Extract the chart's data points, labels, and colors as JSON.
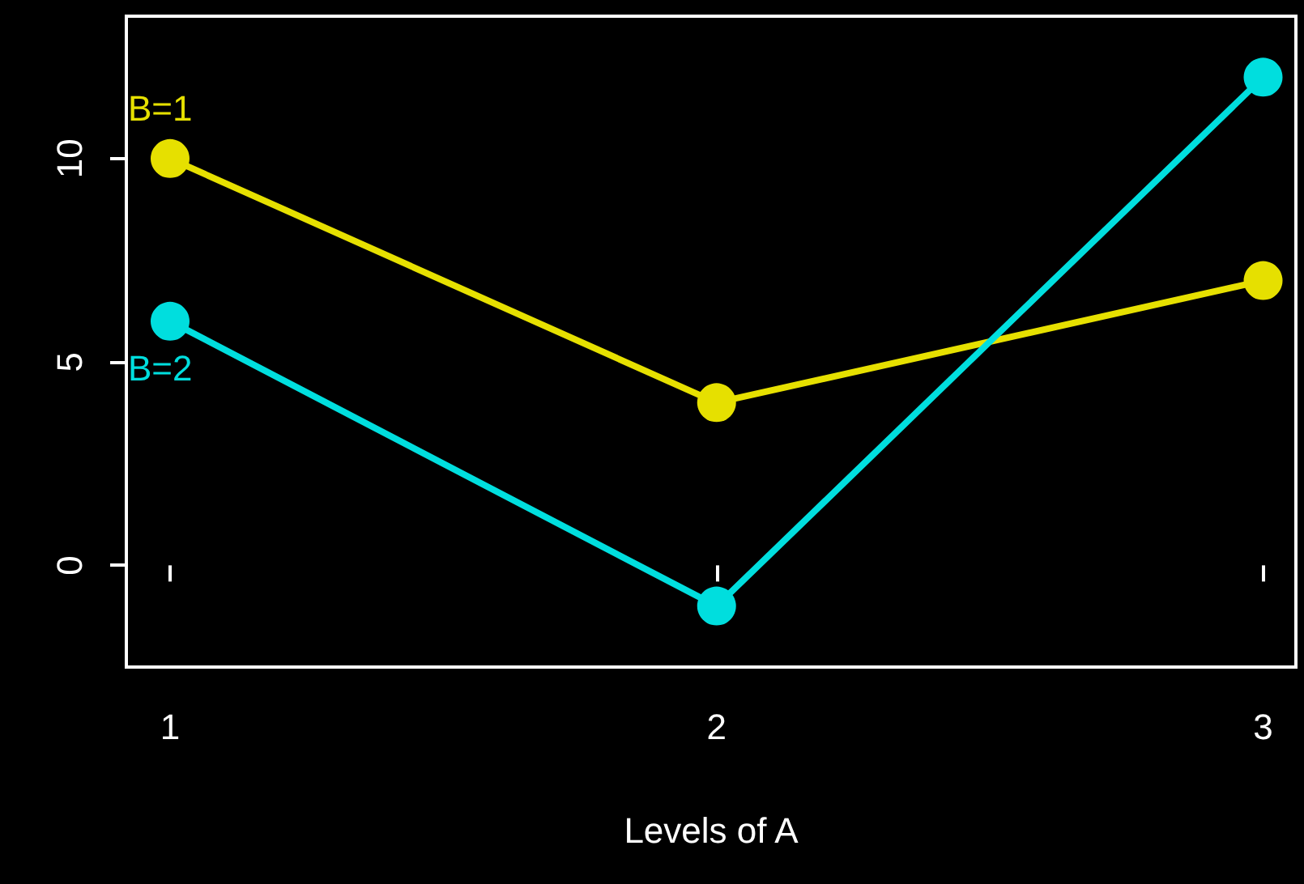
{
  "chart_data": {
    "type": "line",
    "xlabel": "Levels of A",
    "x": [
      1,
      2,
      3
    ],
    "xlim": [
      0.92,
      3.06
    ],
    "xticks": [
      1,
      2,
      3
    ],
    "ylim": [
      -2.5,
      13.5
    ],
    "yticks": [
      0,
      5,
      10
    ],
    "marker": "circle",
    "line_style": "solid",
    "grid": false,
    "legend": false,
    "series": [
      {
        "name": "B=1",
        "color": "#e6e000",
        "values": [
          10,
          4,
          7
        ]
      },
      {
        "name": "B=2",
        "color": "#00dede",
        "values": [
          6,
          -1,
          12
        ]
      }
    ]
  }
}
